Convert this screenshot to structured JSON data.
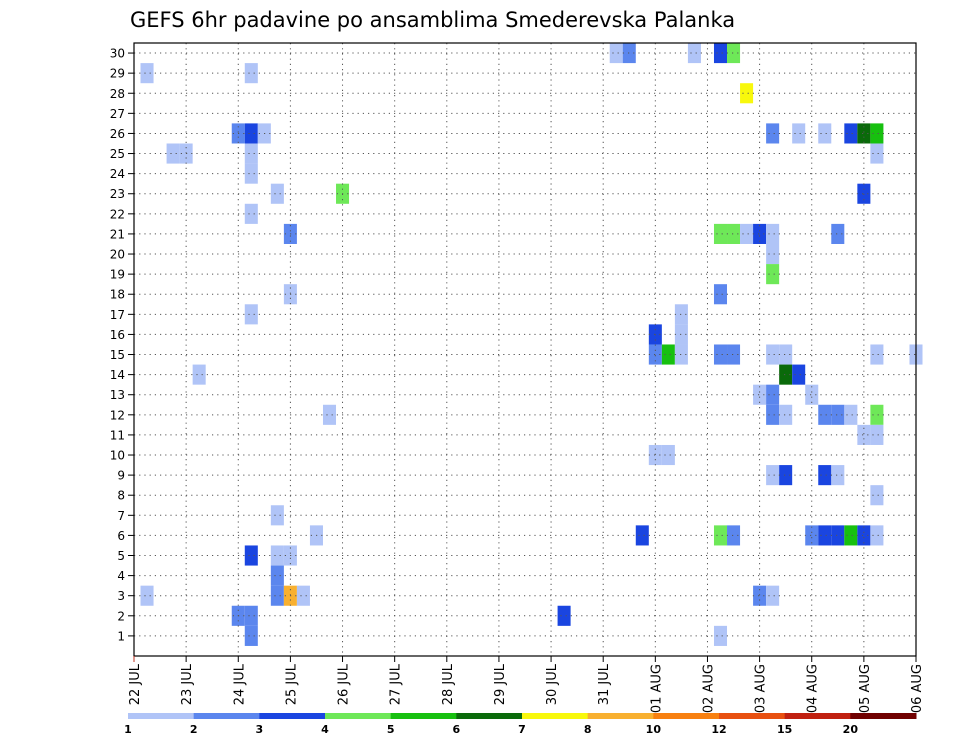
{
  "chart_data": {
    "type": "heatmap",
    "title": "GEFS 6hr padavine po ansamblima Smederevska Palanka",
    "y_ticks": [
      "1",
      "2",
      "3",
      "4",
      "5",
      "6",
      "7",
      "8",
      "9",
      "10",
      "11",
      "12",
      "13",
      "14",
      "15",
      "16",
      "17",
      "18",
      "19",
      "20",
      "21",
      "22",
      "23",
      "24",
      "25",
      "26",
      "27",
      "28",
      "29",
      "30"
    ],
    "x_ticks": [
      "22 JUL",
      "23 JUL",
      "24 JUL",
      "25 JUL",
      "26 JUL",
      "27 JUL",
      "28 JUL",
      "29 JUL",
      "30 JUL",
      "31 JUL",
      "01 AUG",
      "02 AUG",
      "03 AUG",
      "04 AUG",
      "05 AUG",
      "06 AUG"
    ],
    "grid": "dotted",
    "legend": {
      "placement": "bottom",
      "labels": [
        "1",
        "2",
        "3",
        "4",
        "5",
        "6",
        "7",
        "8",
        "10",
        "12",
        "15",
        "20"
      ],
      "colors": [
        "#b0c4f7",
        "#5b86ee",
        "#1a45e0",
        "#6ee858",
        "#17c00f",
        "#0a6a0a",
        "#f8f80c",
        "#f8b030",
        "#f88010",
        "#e85010",
        "#c02010",
        "#700000"
      ]
    },
    "units": "6-hour steps; cell = [member, step, class]",
    "cells": [
      [
        30,
        37,
        1
      ],
      [
        30,
        38,
        2
      ],
      [
        30,
        43,
        1
      ],
      [
        30,
        45,
        3
      ],
      [
        30,
        46,
        4
      ],
      [
        29,
        1,
        1
      ],
      [
        29,
        9,
        1
      ],
      [
        28,
        47,
        7
      ],
      [
        26,
        8,
        2
      ],
      [
        26,
        9,
        3
      ],
      [
        26,
        10,
        1
      ],
      [
        26,
        49,
        2
      ],
      [
        26,
        51,
        1
      ],
      [
        26,
        53,
        1
      ],
      [
        26,
        55,
        3
      ],
      [
        26,
        56,
        6
      ],
      [
        26,
        57,
        5
      ],
      [
        25,
        3,
        1
      ],
      [
        25,
        4,
        1
      ],
      [
        25,
        9,
        1
      ],
      [
        25,
        57,
        1
      ],
      [
        24,
        9,
        1
      ],
      [
        23,
        11,
        1
      ],
      [
        23,
        16,
        4
      ],
      [
        23,
        56,
        3
      ],
      [
        22,
        9,
        1
      ],
      [
        21,
        12,
        2
      ],
      [
        21,
        45,
        4
      ],
      [
        21,
        46,
        4
      ],
      [
        21,
        47,
        1
      ],
      [
        21,
        48,
        3
      ],
      [
        21,
        49,
        1
      ],
      [
        21,
        54,
        2
      ],
      [
        20,
        49,
        1
      ],
      [
        19,
        49,
        4
      ],
      [
        18,
        12,
        1
      ],
      [
        18,
        45,
        2
      ],
      [
        17,
        9,
        1
      ],
      [
        17,
        42,
        1
      ],
      [
        16,
        40,
        3
      ],
      [
        16,
        42,
        1
      ],
      [
        15,
        40,
        2
      ],
      [
        15,
        41,
        5
      ],
      [
        15,
        42,
        1
      ],
      [
        15,
        45,
        2
      ],
      [
        15,
        46,
        2
      ],
      [
        15,
        49,
        1
      ],
      [
        15,
        50,
        1
      ],
      [
        15,
        57,
        1
      ],
      [
        15,
        60,
        1
      ],
      [
        14,
        5,
        1
      ],
      [
        14,
        50,
        6
      ],
      [
        14,
        51,
        3
      ],
      [
        13,
        48,
        1
      ],
      [
        13,
        49,
        2
      ],
      [
        13,
        52,
        1
      ],
      [
        12,
        15,
        1
      ],
      [
        12,
        49,
        2
      ],
      [
        12,
        50,
        1
      ],
      [
        12,
        53,
        2
      ],
      [
        12,
        54,
        2
      ],
      [
        12,
        55,
        1
      ],
      [
        12,
        57,
        4
      ],
      [
        11,
        56,
        1
      ],
      [
        11,
        57,
        1
      ],
      [
        10,
        40,
        1
      ],
      [
        10,
        41,
        1
      ],
      [
        9,
        49,
        1
      ],
      [
        9,
        50,
        3
      ],
      [
        9,
        53,
        3
      ],
      [
        9,
        54,
        1
      ],
      [
        8,
        57,
        1
      ],
      [
        7,
        11,
        1
      ],
      [
        6,
        14,
        1
      ],
      [
        6,
        39,
        3
      ],
      [
        6,
        45,
        4
      ],
      [
        6,
        46,
        2
      ],
      [
        6,
        52,
        2
      ],
      [
        6,
        53,
        3
      ],
      [
        6,
        54,
        3
      ],
      [
        6,
        55,
        5
      ],
      [
        6,
        56,
        3
      ],
      [
        6,
        57,
        1
      ],
      [
        5,
        9,
        3
      ],
      [
        5,
        11,
        1
      ],
      [
        5,
        12,
        1
      ],
      [
        4,
        11,
        2
      ],
      [
        3,
        1,
        1
      ],
      [
        3,
        11,
        2
      ],
      [
        3,
        12,
        8
      ],
      [
        3,
        13,
        1
      ],
      [
        3,
        48,
        2
      ],
      [
        3,
        49,
        1
      ],
      [
        2,
        8,
        2
      ],
      [
        2,
        9,
        2
      ],
      [
        2,
        33,
        3
      ],
      [
        1,
        9,
        2
      ],
      [
        1,
        45,
        1
      ]
    ]
  }
}
